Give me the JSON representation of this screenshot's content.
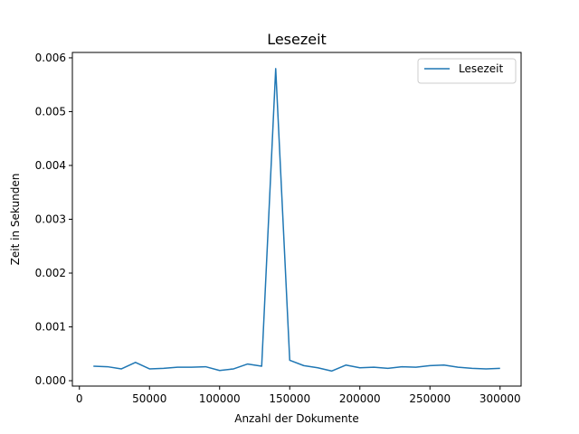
{
  "chart_data": {
    "type": "line",
    "title": "Lesezeit",
    "xlabel": "Anzahl der Dokumente",
    "ylabel": "Zeit in Sekunden",
    "xlim": [
      -5000,
      315000
    ],
    "ylim": [
      -0.0001,
      0.0061
    ],
    "xticks": [
      0,
      50000,
      100000,
      150000,
      200000,
      250000,
      300000
    ],
    "xtick_labels": [
      "0",
      "50000",
      "100000",
      "150000",
      "200000",
      "250000",
      "300000"
    ],
    "yticks": [
      0,
      0.001,
      0.002,
      0.003,
      0.004,
      0.005,
      0.006
    ],
    "ytick_labels": [
      "0.000",
      "0.001",
      "0.002",
      "0.003",
      "0.004",
      "0.005",
      "0.006"
    ],
    "grid": false,
    "legend_position": "top-right",
    "series": [
      {
        "name": "Lesezeit",
        "color": "#1f77b4",
        "x": [
          10000,
          20000,
          30000,
          40000,
          50000,
          60000,
          70000,
          80000,
          90000,
          100000,
          110000,
          120000,
          130000,
          140000,
          150000,
          160000,
          170000,
          180000,
          190000,
          200000,
          210000,
          220000,
          230000,
          240000,
          250000,
          260000,
          270000,
          280000,
          290000,
          300000
        ],
        "y": [
          0.00027,
          0.00026,
          0.00022,
          0.00034,
          0.00022,
          0.00023,
          0.00025,
          0.00025,
          0.00026,
          0.00019,
          0.00022,
          0.00031,
          0.00027,
          0.0058,
          0.00038,
          0.00028,
          0.00024,
          0.00018,
          0.00029,
          0.00024,
          0.00025,
          0.00023,
          0.00026,
          0.00025,
          0.00028,
          0.00029,
          0.00025,
          0.00023,
          0.00022,
          0.00023
        ]
      }
    ]
  }
}
